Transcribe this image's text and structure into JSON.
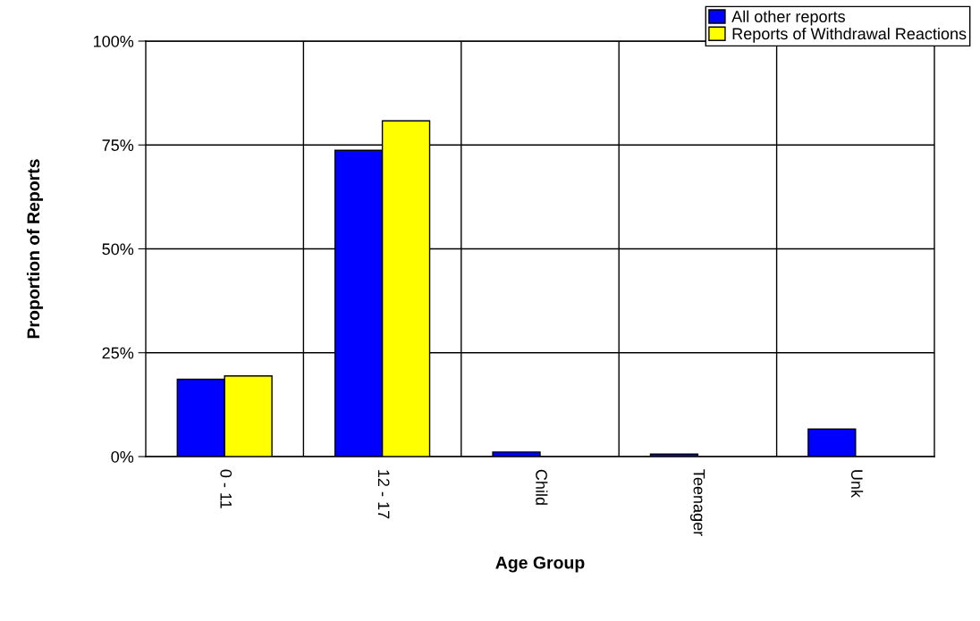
{
  "chart_data": {
    "type": "bar",
    "xlabel": "Age Group",
    "ylabel": "Proportion of Reports",
    "categories": [
      "0 - 11",
      "12 - 17",
      "Child",
      "Teenager",
      "Unk"
    ],
    "series": [
      {
        "name": "All other reports",
        "color": "#0000ff",
        "values": [
          18.6,
          73.7,
          1.1,
          0.6,
          6.6
        ]
      },
      {
        "name": "Reports of Withdrawal Reactions",
        "color": "#ffff00",
        "values": [
          19.4,
          80.8,
          null,
          null,
          null
        ]
      }
    ],
    "ylim": [
      0,
      100
    ],
    "yticks": [
      {
        "value": 0,
        "label": "0%"
      },
      {
        "value": 25,
        "label": "25%"
      },
      {
        "value": 50,
        "label": "50%"
      },
      {
        "value": 75,
        "label": "75%"
      },
      {
        "value": 100,
        "label": "100%"
      }
    ],
    "grid": true,
    "legend": "top right"
  }
}
